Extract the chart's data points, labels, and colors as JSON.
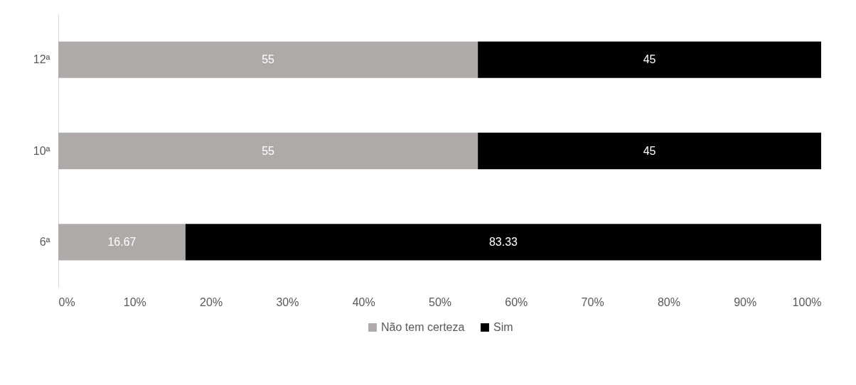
{
  "chart_data": {
    "type": "bar",
    "orientation": "horizontal",
    "stacked": true,
    "categories": [
      "12ª",
      "10ª",
      "6ª"
    ],
    "series": [
      {
        "name": "Não tem certeza",
        "color": "#aeaaaa",
        "values": [
          55,
          55,
          16.67
        ]
      },
      {
        "name": "Sim",
        "color": "#000000",
        "values": [
          45,
          45,
          83.33
        ]
      }
    ],
    "xlim": [
      0,
      100
    ],
    "xticks": [
      {
        "value": 0,
        "label": "0%"
      },
      {
        "value": 10,
        "label": "10%"
      },
      {
        "value": 20,
        "label": "20%"
      },
      {
        "value": 30,
        "label": "30%"
      },
      {
        "value": 40,
        "label": "40%"
      },
      {
        "value": 50,
        "label": "50%"
      },
      {
        "value": 60,
        "label": "60%"
      },
      {
        "value": 70,
        "label": "70%"
      },
      {
        "value": 80,
        "label": "80%"
      },
      {
        "value": 90,
        "label": "90%"
      },
      {
        "value": 100,
        "label": "100%"
      }
    ],
    "data_labels": true,
    "grid": false,
    "legend": "bottom"
  }
}
